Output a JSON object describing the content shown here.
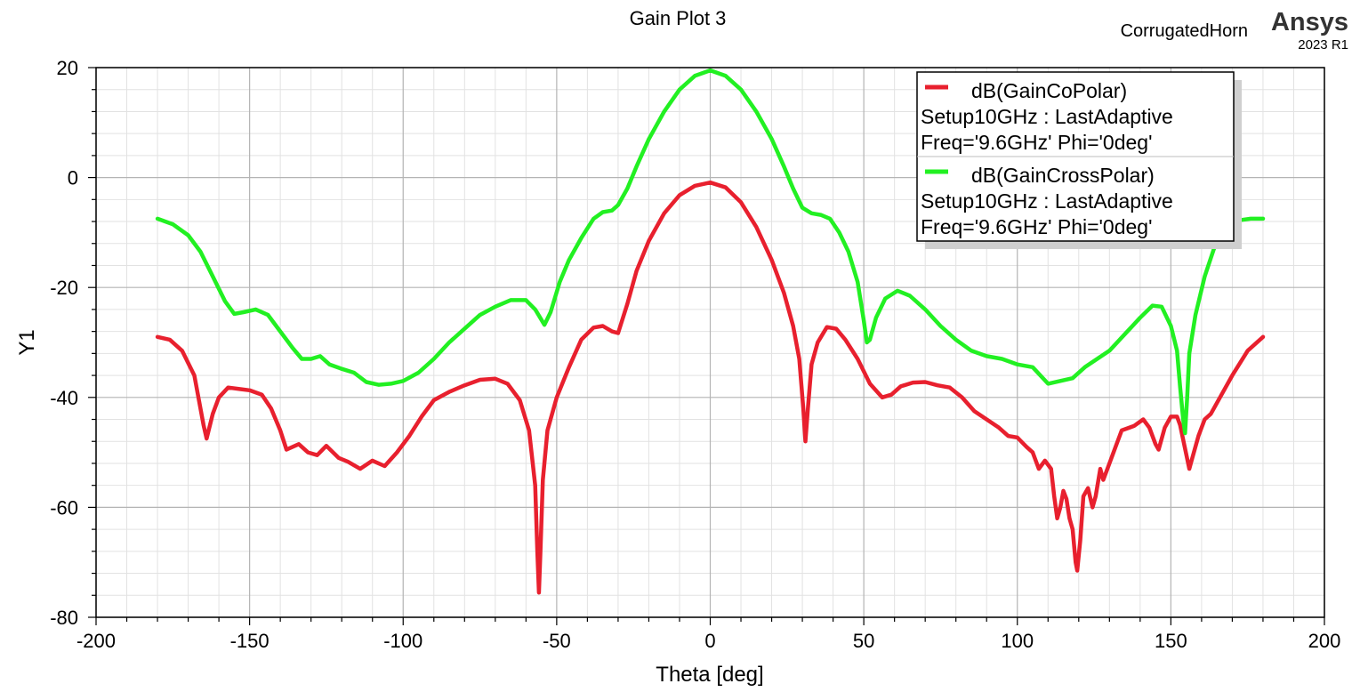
{
  "header": {
    "title": "Gain Plot 3",
    "project": "CorrugatedHorn",
    "brand": "Ansys",
    "version": "2023 R1"
  },
  "chart_data": {
    "type": "line",
    "title": "Gain Plot 3",
    "xlabel": "Theta [deg]",
    "ylabel": "Y1",
    "xlim": [
      -200,
      200
    ],
    "ylim": [
      -80,
      20
    ],
    "xticks": [
      -200,
      -150,
      -100,
      -50,
      0,
      50,
      100,
      150,
      200
    ],
    "yticks": [
      -80,
      -60,
      -40,
      -20,
      0,
      20
    ],
    "grid": true,
    "legend_position": "top-right",
    "series": [
      {
        "name": "dB(GainCoPolar)",
        "setup": "Setup10GHz : LastAdaptive",
        "sweep": "Freq='9.6GHz' Phi='0deg'",
        "color": "#e8202e",
        "points": [
          [
            -180,
            -29
          ],
          [
            -176,
            -29.5
          ],
          [
            -172,
            -31.5
          ],
          [
            -168,
            -36
          ],
          [
            -165,
            -45
          ],
          [
            -164,
            -47.5
          ],
          [
            -162,
            -43
          ],
          [
            -160,
            -40
          ],
          [
            -157,
            -38.2
          ],
          [
            -153,
            -38.5
          ],
          [
            -150,
            -38.7
          ],
          [
            -146,
            -39.5
          ],
          [
            -143,
            -42
          ],
          [
            -140,
            -46
          ],
          [
            -138,
            -49.5
          ],
          [
            -134,
            -48.5
          ],
          [
            -131,
            -50
          ],
          [
            -128,
            -50.5
          ],
          [
            -125,
            -48.8
          ],
          [
            -121,
            -51
          ],
          [
            -118,
            -51.7
          ],
          [
            -114,
            -53
          ],
          [
            -110,
            -51.5
          ],
          [
            -106,
            -52.5
          ],
          [
            -102,
            -50
          ],
          [
            -98,
            -47
          ],
          [
            -94,
            -43.5
          ],
          [
            -90,
            -40.5
          ],
          [
            -85,
            -39
          ],
          [
            -80,
            -37.8
          ],
          [
            -75,
            -36.8
          ],
          [
            -70,
            -36.6
          ],
          [
            -66,
            -37.5
          ],
          [
            -62,
            -40.5
          ],
          [
            -59,
            -46
          ],
          [
            -57,
            -56
          ],
          [
            -56.3,
            -68
          ],
          [
            -55.8,
            -75.5
          ],
          [
            -55.3,
            -68
          ],
          [
            -54.5,
            -55
          ],
          [
            -53,
            -46
          ],
          [
            -50,
            -40
          ],
          [
            -46,
            -34.5
          ],
          [
            -42,
            -29.5
          ],
          [
            -38,
            -27.3
          ],
          [
            -35,
            -27
          ],
          [
            -32,
            -28
          ],
          [
            -30,
            -28.3
          ],
          [
            -27,
            -23
          ],
          [
            -24,
            -17
          ],
          [
            -20,
            -11.5
          ],
          [
            -15,
            -6.5
          ],
          [
            -10,
            -3.2
          ],
          [
            -5,
            -1.5
          ],
          [
            0,
            -0.9
          ],
          [
            5,
            -1.8
          ],
          [
            10,
            -4.5
          ],
          [
            15,
            -9
          ],
          [
            20,
            -15
          ],
          [
            24,
            -21
          ],
          [
            27,
            -27
          ],
          [
            29,
            -33
          ],
          [
            30.3,
            -42
          ],
          [
            31,
            -48
          ],
          [
            31.8,
            -42
          ],
          [
            33,
            -34
          ],
          [
            35,
            -30
          ],
          [
            38,
            -27.2
          ],
          [
            41,
            -27.5
          ],
          [
            44,
            -29.5
          ],
          [
            48,
            -33
          ],
          [
            52,
            -37.5
          ],
          [
            56,
            -40
          ],
          [
            59,
            -39.5
          ],
          [
            62,
            -38
          ],
          [
            66,
            -37.3
          ],
          [
            70,
            -37.2
          ],
          [
            74,
            -37.8
          ],
          [
            78,
            -38.2
          ],
          [
            82,
            -40
          ],
          [
            86,
            -42.5
          ],
          [
            90,
            -44
          ],
          [
            94,
            -45.5
          ],
          [
            97,
            -47
          ],
          [
            100,
            -47.3
          ],
          [
            103,
            -49
          ],
          [
            105,
            -50
          ],
          [
            107,
            -53
          ],
          [
            109,
            -51.5
          ],
          [
            111,
            -53
          ],
          [
            112,
            -58
          ],
          [
            113,
            -62
          ],
          [
            114,
            -60
          ],
          [
            115,
            -57
          ],
          [
            116,
            -58.5
          ],
          [
            117,
            -62
          ],
          [
            118,
            -64
          ],
          [
            119,
            -70
          ],
          [
            119.5,
            -71.5
          ],
          [
            120.5,
            -66
          ],
          [
            121.5,
            -58
          ],
          [
            123,
            -56.5
          ],
          [
            124.5,
            -60
          ],
          [
            125.5,
            -58
          ],
          [
            127,
            -53
          ],
          [
            128,
            -55
          ],
          [
            130,
            -52
          ],
          [
            132,
            -49
          ],
          [
            134,
            -46
          ],
          [
            138,
            -45.2
          ],
          [
            141,
            -44
          ],
          [
            143,
            -45.5
          ],
          [
            145,
            -48.5
          ],
          [
            146,
            -49.5
          ],
          [
            148,
            -45.5
          ],
          [
            150,
            -43.5
          ],
          [
            152,
            -43.5
          ],
          [
            153,
            -45
          ],
          [
            154.5,
            -49
          ],
          [
            156,
            -53
          ],
          [
            157,
            -51
          ],
          [
            159,
            -47
          ],
          [
            161,
            -44
          ],
          [
            163,
            -43
          ],
          [
            166,
            -40
          ],
          [
            170,
            -36
          ],
          [
            175,
            -31.5
          ],
          [
            180,
            -29
          ]
        ]
      },
      {
        "name": "dB(GainCrossPolar)",
        "setup": "Setup10GHz : LastAdaptive",
        "sweep": "Freq='9.6GHz' Phi='0deg'",
        "color": "#22f022",
        "points": [
          [
            -180,
            -7.5
          ],
          [
            -175,
            -8.5
          ],
          [
            -170,
            -10.5
          ],
          [
            -166,
            -13.5
          ],
          [
            -162,
            -18
          ],
          [
            -158,
            -22.5
          ],
          [
            -155,
            -24.8
          ],
          [
            -152,
            -24.5
          ],
          [
            -148,
            -24
          ],
          [
            -144,
            -25
          ],
          [
            -140,
            -28
          ],
          [
            -136,
            -31
          ],
          [
            -133,
            -33
          ],
          [
            -130,
            -33
          ],
          [
            -127,
            -32.5
          ],
          [
            -124,
            -34
          ],
          [
            -120,
            -34.8
          ],
          [
            -116,
            -35.5
          ],
          [
            -112,
            -37.2
          ],
          [
            -108,
            -37.7
          ],
          [
            -104,
            -37.5
          ],
          [
            -100,
            -37
          ],
          [
            -95,
            -35.5
          ],
          [
            -90,
            -33
          ],
          [
            -85,
            -30
          ],
          [
            -80,
            -27.5
          ],
          [
            -75,
            -25
          ],
          [
            -70,
            -23.5
          ],
          [
            -65,
            -22.3
          ],
          [
            -60,
            -22.3
          ],
          [
            -57,
            -24
          ],
          [
            -54,
            -26.8
          ],
          [
            -52,
            -24.5
          ],
          [
            -49,
            -19
          ],
          [
            -46,
            -15
          ],
          [
            -42,
            -11
          ],
          [
            -38,
            -7.5
          ],
          [
            -35,
            -6.3
          ],
          [
            -32,
            -6
          ],
          [
            -30,
            -5
          ],
          [
            -27,
            -2
          ],
          [
            -24,
            2
          ],
          [
            -20,
            7
          ],
          [
            -15,
            12
          ],
          [
            -10,
            16
          ],
          [
            -5,
            18.5
          ],
          [
            0,
            19.5
          ],
          [
            5,
            18.5
          ],
          [
            10,
            16
          ],
          [
            15,
            12
          ],
          [
            20,
            7
          ],
          [
            24,
            2
          ],
          [
            27,
            -2
          ],
          [
            30,
            -5.5
          ],
          [
            33,
            -6.5
          ],
          [
            36,
            -6.8
          ],
          [
            39,
            -7.5
          ],
          [
            42,
            -10
          ],
          [
            45,
            -13.5
          ],
          [
            48,
            -19
          ],
          [
            50,
            -26
          ],
          [
            51,
            -30
          ],
          [
            52,
            -29.5
          ],
          [
            54,
            -25.5
          ],
          [
            57,
            -22
          ],
          [
            61,
            -20.6
          ],
          [
            65,
            -21.5
          ],
          [
            70,
            -24
          ],
          [
            75,
            -27
          ],
          [
            80,
            -29.5
          ],
          [
            85,
            -31.5
          ],
          [
            90,
            -32.5
          ],
          [
            95,
            -33
          ],
          [
            100,
            -34
          ],
          [
            105,
            -34.5
          ],
          [
            110,
            -37.5
          ],
          [
            114,
            -37
          ],
          [
            118,
            -36.5
          ],
          [
            122,
            -34.5
          ],
          [
            126,
            -33
          ],
          [
            130,
            -31.5
          ],
          [
            135,
            -28.5
          ],
          [
            140,
            -25.5
          ],
          [
            144,
            -23.3
          ],
          [
            147,
            -23.5
          ],
          [
            150,
            -27
          ],
          [
            152,
            -31.5
          ],
          [
            153,
            -38
          ],
          [
            154,
            -44
          ],
          [
            154.6,
            -46.5
          ],
          [
            155.3,
            -40
          ],
          [
            156,
            -32
          ],
          [
            158,
            -25
          ],
          [
            161,
            -18
          ],
          [
            164,
            -13
          ],
          [
            168,
            -9.5
          ],
          [
            172,
            -7.8
          ],
          [
            176,
            -7.5
          ],
          [
            180,
            -7.5
          ]
        ]
      }
    ]
  }
}
